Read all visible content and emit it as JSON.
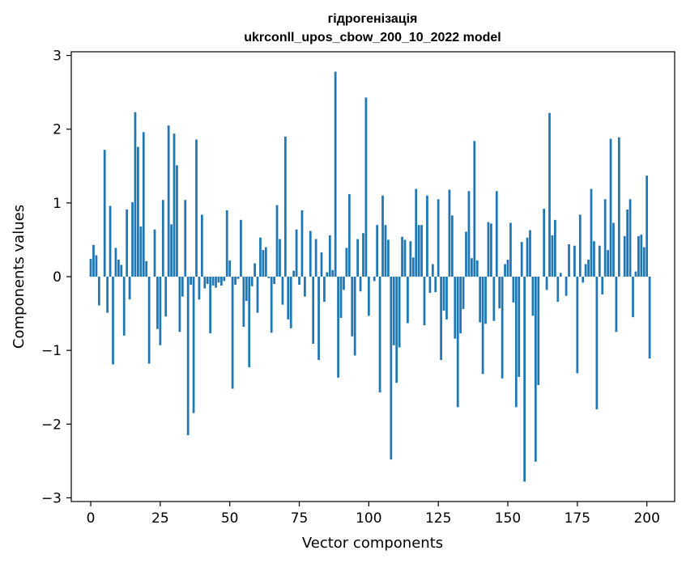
{
  "chart_data": {
    "type": "bar",
    "title": "гідрогенізація",
    "subtitle": "ukrconll_upos_cbow_200_10_2022 model",
    "xlabel": "Vector components",
    "ylabel": "Components values",
    "xlim": [
      -7,
      210
    ],
    "ylim": [
      -3.05,
      3.05
    ],
    "xticks": [
      0,
      25,
      50,
      75,
      100,
      125,
      150,
      175,
      200
    ],
    "yticks": [
      -3,
      -2,
      -1,
      0,
      1,
      2,
      3
    ],
    "ytick_labels": [
      "−3",
      "−2",
      "−1",
      "0",
      "1",
      "2",
      "3"
    ],
    "grid": false,
    "bar_color": "#1f77b4",
    "series": [
      {
        "values": [
          0.24,
          0.43,
          0.29,
          -0.39,
          0.0,
          1.72,
          -0.49,
          0.96,
          -1.19,
          0.39,
          0.23,
          0.16,
          -0.8,
          0.91,
          -0.31,
          1.01,
          2.23,
          1.76,
          0.68,
          1.96,
          0.21,
          -1.18,
          0.0,
          0.64,
          -0.71,
          -0.93,
          1.04,
          -0.54,
          2.05,
          0.71,
          1.94,
          1.51,
          -0.75,
          -0.27,
          1.04,
          -2.15,
          -0.11,
          -1.85,
          1.86,
          -0.31,
          0.84,
          -0.16,
          -0.1,
          -0.77,
          -0.12,
          -0.15,
          -0.08,
          -0.12,
          -0.06,
          0.9,
          0.22,
          -1.52,
          -0.11,
          -0.03,
          0.77,
          -0.68,
          -0.33,
          -1.23,
          -0.13,
          0.18,
          -0.49,
          0.53,
          0.36,
          0.4,
          -0.02,
          -0.76,
          -0.1,
          0.97,
          0.51,
          -0.38,
          1.9,
          -0.58,
          -0.7,
          0.08,
          0.64,
          -0.11,
          0.9,
          -0.27,
          0.0,
          0.62,
          -0.91,
          0.51,
          -1.13,
          0.33,
          -0.34,
          0.06,
          0.56,
          0.09,
          2.78,
          -1.37,
          -0.56,
          -0.18,
          0.39,
          1.12,
          -0.81,
          -1.07,
          0.51,
          -0.2,
          0.59,
          2.43,
          -0.53,
          0.0,
          -0.06,
          0.7,
          -1.57,
          1.1,
          0.7,
          0.5,
          -2.48,
          -0.93,
          -1.44,
          -0.96,
          0.54,
          0.5,
          -0.63,
          0.48,
          0.26,
          1.19,
          0.7,
          0.7,
          -0.66,
          1.1,
          -0.22,
          0.17,
          -0.21,
          1.05,
          -1.13,
          -0.46,
          -0.58,
          1.18,
          0.83,
          -0.84,
          -1.77,
          -0.77,
          -0.44,
          0.61,
          1.16,
          0.25,
          1.84,
          0.22,
          -0.62,
          -1.32,
          -0.64,
          0.74,
          0.72,
          -0.6,
          1.16,
          -0.43,
          -1.38,
          0.17,
          0.23,
          0.73,
          -0.35,
          -1.77,
          -1.36,
          0.47,
          -2.78,
          0.53,
          0.63,
          -0.53,
          -2.51,
          -1.47,
          0.0,
          0.92,
          -0.18,
          2.22,
          0.56,
          0.77,
          -0.34,
          0.05,
          0.0,
          -0.26,
          0.44,
          0.0,
          0.42,
          -1.31,
          0.84,
          -0.08,
          0.17,
          0.23,
          1.19,
          0.48,
          -1.8,
          0.42,
          -0.24,
          1.05,
          0.36,
          1.87,
          0.73,
          -0.75,
          1.89,
          0.0,
          0.55,
          0.91,
          1.05,
          -0.55,
          0.07,
          0.55,
          0.57,
          0.4,
          1.37,
          -1.11
        ]
      }
    ]
  }
}
